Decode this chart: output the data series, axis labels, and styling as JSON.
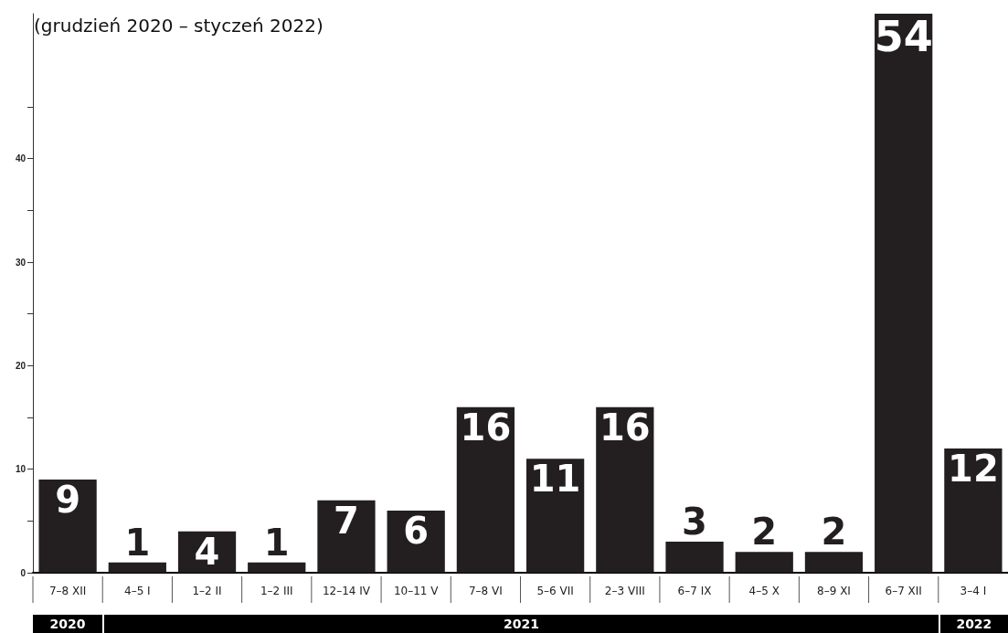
{
  "chart_data": {
    "type": "bar",
    "subtitle": "(grudzień 2020 – styczeń 2022)",
    "categories": [
      "7–8 XII",
      "4–5 I",
      "1–2 II",
      "1–2 III",
      "12–14 IV",
      "10–11 V",
      "7–8 VI",
      "5–6 VII",
      "2–3 VIII",
      "6–7 IX",
      "4–5 X",
      "8–9 XI",
      "6–7 XII",
      "3–4 I"
    ],
    "values": [
      9,
      1,
      4,
      1,
      7,
      6,
      16,
      11,
      16,
      3,
      2,
      2,
      54,
      12
    ],
    "color": "#231f20",
    "data_labels": true,
    "ylim": [
      0,
      54
    ],
    "yticks": [
      0,
      {
        "value": 5,
        "label": null
      },
      10,
      {
        "value": 15,
        "label": null
      },
      20,
      {
        "value": 25,
        "label": null
      },
      30,
      {
        "value": 35,
        "label": null
      },
      40,
      {
        "value": 45,
        "label": null
      }
    ],
    "annotations": [
      "2020",
      "2021",
      "2022"
    ]
  }
}
